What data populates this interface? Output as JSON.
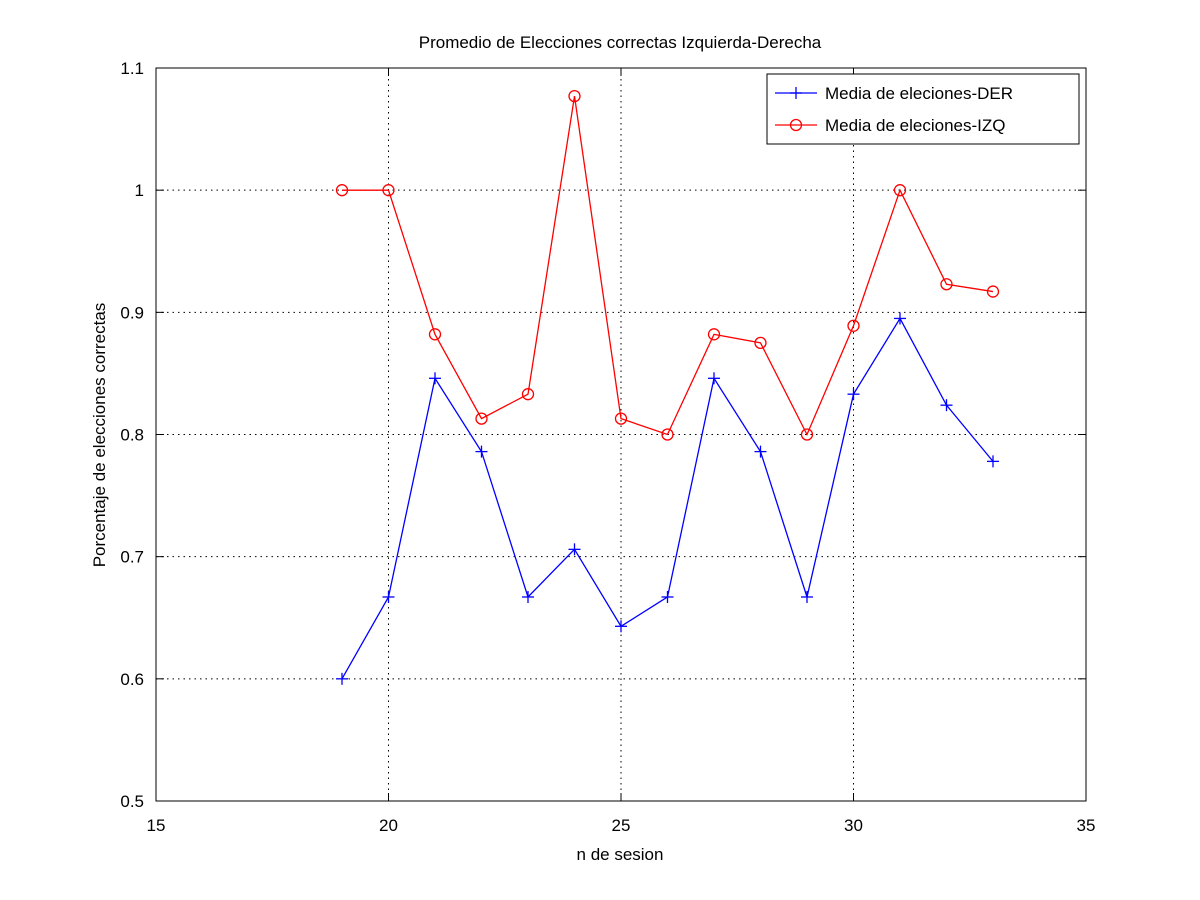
{
  "chart_data": {
    "type": "line",
    "title": "Promedio de Elecciones correctas Izquierda-Derecha",
    "xlabel": "n de sesion",
    "ylabel": "Porcentaje de elecciones correctas",
    "xlim": [
      15,
      35
    ],
    "ylim": [
      0.5,
      1.1
    ],
    "xticks": [
      "15",
      "20",
      "25",
      "30",
      "35"
    ],
    "yticks": [
      "0.5",
      "0.6",
      "0.7",
      "0.8",
      "0.9",
      "1",
      "1.1"
    ],
    "grid": true,
    "legend_position": "top-right",
    "x": [
      19,
      20,
      21,
      22,
      23,
      24,
      25,
      26,
      27,
      28,
      29,
      30,
      31,
      32,
      33
    ],
    "series": [
      {
        "name": "Media de eleciones-DER",
        "color": "#0000ff",
        "marker": "plus",
        "values": [
          0.6,
          0.667,
          0.846,
          0.786,
          0.667,
          0.706,
          0.643,
          0.667,
          0.846,
          0.786,
          0.667,
          0.833,
          0.895,
          0.824,
          0.778
        ]
      },
      {
        "name": "Media de eleciones-IZQ",
        "color": "#ff0000",
        "marker": "circle",
        "values": [
          1.0,
          1.0,
          0.882,
          0.813,
          0.833,
          1.077,
          0.813,
          0.8,
          0.882,
          0.875,
          0.8,
          0.889,
          1.0,
          0.923,
          0.917
        ]
      }
    ]
  }
}
